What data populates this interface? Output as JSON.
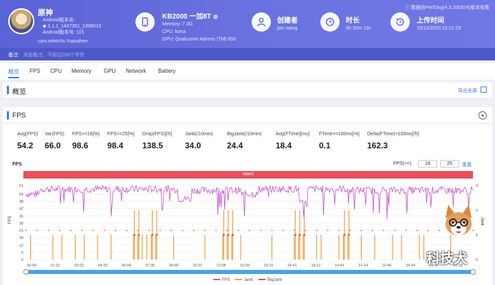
{
  "app": {
    "name": "原神",
    "android_version_label": "Android版本名:",
    "android_version": "1.1.1_1437351_1398019",
    "android_code_label": "Android版本号: 115",
    "package": "com.miHoYo.Yuanshen"
  },
  "device": {
    "title": "KB2000 一加8T",
    "memory": "Memory: 7.3G",
    "cpu": "CPU: kona",
    "gpu": "GPU: Qualcomm Adreno (TM) 650"
  },
  "creator": {
    "label": "创建者",
    "value": "jian wang"
  },
  "duration": {
    "label": "时长",
    "value": "0h 30m 19s"
  },
  "upload": {
    "label": "上传时间",
    "value": "15/12/2020 22:21:29"
  },
  "source_note": "数据由PerfDog(4.3.200924)版本收集",
  "note": {
    "label": "备注:",
    "placeholder": "添加备注，不超过200个字符"
  },
  "tabs": [
    "概览",
    "FPS",
    "CPU",
    "Memory",
    "GPU",
    "Network",
    "Battery"
  ],
  "overview": {
    "title": "概览",
    "export_label": "导出全部"
  },
  "fps_section": {
    "title": "FPS"
  },
  "stats": [
    {
      "label": "Avg(FPS)",
      "value": "54.2"
    },
    {
      "label": "Var(FPS)",
      "value": "66.0"
    },
    {
      "label": "FPS>=18[%]",
      "value": "98.6"
    },
    {
      "label": "FPS>=25[%]",
      "value": "98.4"
    },
    {
      "label": "Drop(FPS)[/h]",
      "value": "138.5"
    },
    {
      "label": "Jank(/10min)",
      "value": "34.0"
    },
    {
      "label": "BigJank(/10min)",
      "value": "24.4"
    },
    {
      "label": "Avg(FTime)[ms]",
      "value": "18.4"
    },
    {
      "label": "FTime>=100ms[%]",
      "value": "0.1"
    },
    {
      "label": "Delta(FTime)>100ms[/h]",
      "value": "162.3"
    }
  ],
  "chart_controls": {
    "chart_label": "FPS",
    "threshold_label": "FPS(>=)",
    "threshold_1": "18",
    "threshold_2": "25",
    "reset_label": "重置",
    "band_label": "label1"
  },
  "chart_data": {
    "type": "line",
    "ylabel": "FPS",
    "y2label": "Jank",
    "yticks": [
      0,
      6,
      12,
      18,
      24,
      30,
      36,
      42,
      48,
      54,
      61
    ],
    "ylim": [
      0,
      61
    ],
    "y2ticks": [
      0,
      1,
      2,
      3
    ],
    "y2lim": [
      0,
      3
    ],
    "xticks": [
      "00:00",
      "01:31",
      "03:02",
      "04:33",
      "06:04",
      "07:35",
      "09:06",
      "10:37",
      "12:08",
      "13:39",
      "15:10",
      "16:41",
      "18:12",
      "19:43",
      "21:14",
      "22:45",
      "24:16",
      "25:47",
      "27:18"
    ],
    "legend": [
      "FPS",
      "Jank",
      "BigJank"
    ],
    "series_colors": {
      "FPS": "#c44fc9",
      "Jank": "#f39c3c",
      "BigJank": "#e2473f"
    },
    "fps_baseline": 60,
    "fps_segments": [
      {
        "from": 0.0,
        "to": 0.03,
        "level": 54
      },
      {
        "from": 0.03,
        "to": 0.34,
        "level": 58
      },
      {
        "from": 0.34,
        "to": 0.37,
        "level": 50
      },
      {
        "from": 0.37,
        "to": 0.48,
        "level": 57
      },
      {
        "from": 0.48,
        "to": 0.52,
        "level": 54
      },
      {
        "from": 0.52,
        "to": 0.61,
        "level": 58
      },
      {
        "from": 0.61,
        "to": 0.63,
        "level": 46
      },
      {
        "from": 0.63,
        "to": 0.72,
        "level": 58
      },
      {
        "from": 0.72,
        "to": 1.0,
        "level": 57
      }
    ],
    "jank_spikes_at": [
      0.01,
      0.06,
      0.08,
      0.11,
      0.13,
      0.16,
      0.19,
      0.24,
      0.25,
      0.26,
      0.27,
      0.28,
      0.29,
      0.33,
      0.4,
      0.44,
      0.45,
      0.46,
      0.48,
      0.55,
      0.6,
      0.61,
      0.62,
      0.65,
      0.66,
      0.7,
      0.71,
      0.72,
      0.75,
      0.78,
      0.82,
      0.84,
      0.88,
      0.89,
      0.95
    ],
    "bigjank_spikes_at": [
      0.24,
      0.25,
      0.28,
      0.29,
      0.44,
      0.45,
      0.46,
      0.6,
      0.61,
      0.62,
      0.71,
      0.72
    ]
  },
  "watermark": "科技犬"
}
